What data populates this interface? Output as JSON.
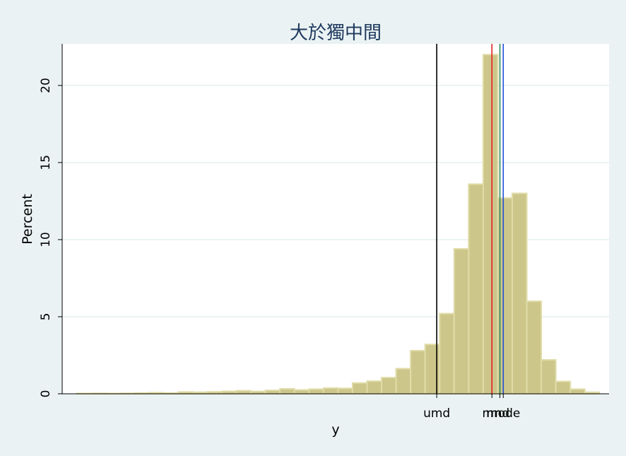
{
  "chart_data": {
    "type": "bar",
    "title": "大於獨中間",
    "xlabel": "y",
    "ylabel": "Percent",
    "ylim": [
      0,
      22.7
    ],
    "y_ticks": [
      0,
      5,
      10,
      15,
      20
    ],
    "grid": true,
    "bar_color": "#cdc68a",
    "bar_edge_color": "#e0dca8",
    "values": [
      0.02,
      0.03,
      0.02,
      0.03,
      0.05,
      0.07,
      0.05,
      0.12,
      0.1,
      0.13,
      0.16,
      0.2,
      0.15,
      0.22,
      0.32,
      0.25,
      0.3,
      0.37,
      0.35,
      0.7,
      0.82,
      1.05,
      1.63,
      2.8,
      3.2,
      5.2,
      9.4,
      13.6,
      22.0,
      12.7,
      13.0,
      6.0,
      2.2,
      0.8,
      0.3,
      0.1
    ],
    "markers": [
      {
        "label": "umd",
        "color": "#000000",
        "position": 24.8
      },
      {
        "label": "mn",
        "color": "#e02020",
        "position": 28.6
      },
      {
        "label": "md",
        "color": "#2e8b57",
        "position": 29.15
      },
      {
        "label": "mode",
        "color": "#1f4fd8",
        "position": 29.38
      }
    ]
  }
}
